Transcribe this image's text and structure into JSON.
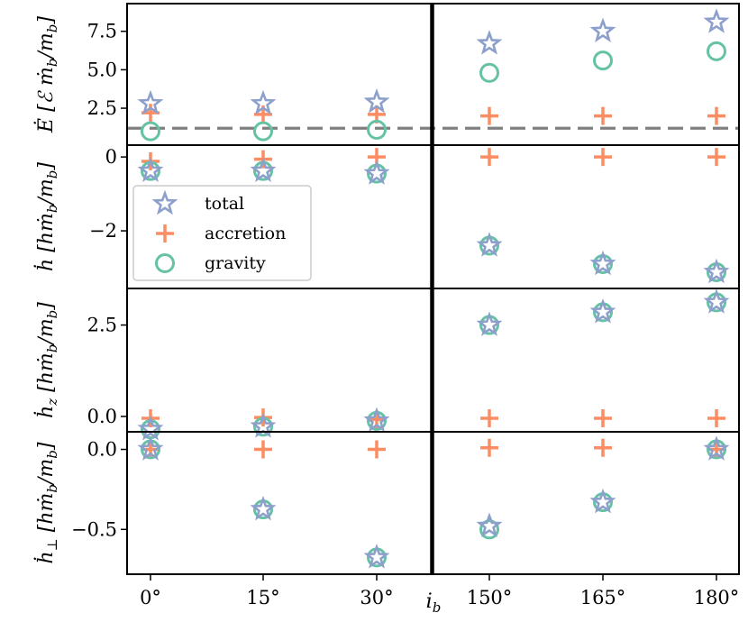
{
  "chart_data": {
    "type": "scatter",
    "title": "",
    "xlabel": "i_b",
    "xlabel_parts": {
      "base": "i",
      "sub": "b"
    },
    "categories": [
      "0°",
      "15°",
      "30°",
      "150°",
      "165°",
      "180°"
    ],
    "legend": {
      "placement": "second-panel-left",
      "entries": [
        {
          "series": "total",
          "label": "total"
        },
        {
          "series": "accretion",
          "label": "accretion"
        },
        {
          "series": "gravity",
          "label": "gravity"
        }
      ]
    },
    "colors": {
      "total": "#8da0cb",
      "accretion": "#fc8d62",
      "gravity": "#66c2a5",
      "reference_line": "#808080"
    },
    "panels": [
      {
        "id": "energy",
        "ylabel": "Ė [ℰ ṁ_b / m_b]",
        "ylabel_parts": {
          "symbol": "Ė",
          "unit_base": "[ℰ ṁ",
          "unit_sub": "b",
          "unit_tail": "/m",
          "unit_sub2": "b",
          "unit_close": "]"
        },
        "ylim": [
          0.1,
          9.3
        ],
        "yticks": [
          2.5,
          5.0,
          7.5
        ],
        "ytick_labels": [
          "2.5",
          "5.0",
          "7.5"
        ],
        "reference_line": 1.2,
        "series": [
          {
            "name": "total",
            "marker": "star",
            "values": [
              2.8,
              2.8,
              2.9,
              6.7,
              7.5,
              8.1
            ]
          },
          {
            "name": "accretion",
            "marker": "plus",
            "values": [
              2.2,
              2.1,
              2.1,
              2.0,
              2.0,
              2.0
            ]
          },
          {
            "name": "gravity",
            "marker": "circle",
            "values": [
              1.0,
              1.0,
              1.1,
              4.8,
              5.6,
              6.2
            ]
          }
        ]
      },
      {
        "id": "h",
        "ylabel": "ḣ [h ṁ_b / m_b]",
        "ylabel_parts": {
          "symbol": "ḣ",
          "unit_base": "[hṁ",
          "unit_sub": "b",
          "unit_tail": "/m",
          "unit_sub2": "b",
          "unit_close": "]"
        },
        "ylim": [
          -3.56,
          0.32
        ],
        "yticks": [
          0,
          -2
        ],
        "ytick_labels": [
          "0",
          "−2"
        ],
        "series": [
          {
            "name": "total",
            "marker": "star",
            "values": [
              -0.38,
              -0.38,
              -0.45,
              -2.4,
              -2.9,
              -3.12
            ]
          },
          {
            "name": "accretion",
            "marker": "plus",
            "values": [
              -0.12,
              -0.06,
              0.0,
              0.0,
              0.0,
              0.0
            ]
          },
          {
            "name": "gravity",
            "marker": "circle",
            "values": [
              -0.38,
              -0.38,
              -0.45,
              -2.4,
              -2.9,
              -3.12
            ]
          }
        ]
      },
      {
        "id": "hz",
        "ylabel": "ḣ_z [h ṁ_b / m_b]",
        "ylabel_parts": {
          "symbol": "ḣ",
          "symbol_sub": "z",
          "unit_base": "[hṁ",
          "unit_sub": "b",
          "unit_tail": "/m",
          "unit_sub2": "b",
          "unit_close": "]"
        },
        "ylim": [
          -0.42,
          3.5
        ],
        "yticks": [
          0.0,
          2.5
        ],
        "ytick_labels": [
          "0.0",
          "2.5"
        ],
        "series": [
          {
            "name": "total",
            "marker": "star",
            "values": [
              -0.35,
              -0.28,
              -0.12,
              2.5,
              2.85,
              3.12
            ]
          },
          {
            "name": "accretion",
            "marker": "plus",
            "values": [
              -0.05,
              -0.03,
              -0.08,
              -0.05,
              -0.05,
              -0.05
            ]
          },
          {
            "name": "gravity",
            "marker": "circle",
            "values": [
              -0.35,
              -0.28,
              -0.12,
              2.5,
              2.85,
              3.12
            ]
          }
        ]
      },
      {
        "id": "hperp",
        "ylabel": "ḣ_⊥ [h ṁ_b / m_b]",
        "ylabel_parts": {
          "symbol": "ḣ",
          "symbol_sub": "⊥",
          "unit_base": "[hṁ",
          "unit_sub": "b",
          "unit_tail": "/m",
          "unit_sub2": "b",
          "unit_close": "]"
        },
        "ylim": [
          -0.78,
          0.11
        ],
        "yticks": [
          0.0,
          -0.5
        ],
        "ytick_labels": [
          "0.0",
          "−0.5"
        ],
        "series": [
          {
            "name": "total",
            "marker": "star",
            "values": [
              0.0,
              -0.375,
              -0.675,
              -0.48,
              -0.33,
              0.0
            ]
          },
          {
            "name": "accretion",
            "marker": "plus",
            "values": [
              0.0,
              0.0,
              0.0,
              0.01,
              0.01,
              0.0
            ]
          },
          {
            "name": "gravity",
            "marker": "circle",
            "values": [
              0.0,
              -0.375,
              -0.675,
              -0.5,
              -0.33,
              0.0
            ]
          }
        ]
      }
    ]
  }
}
